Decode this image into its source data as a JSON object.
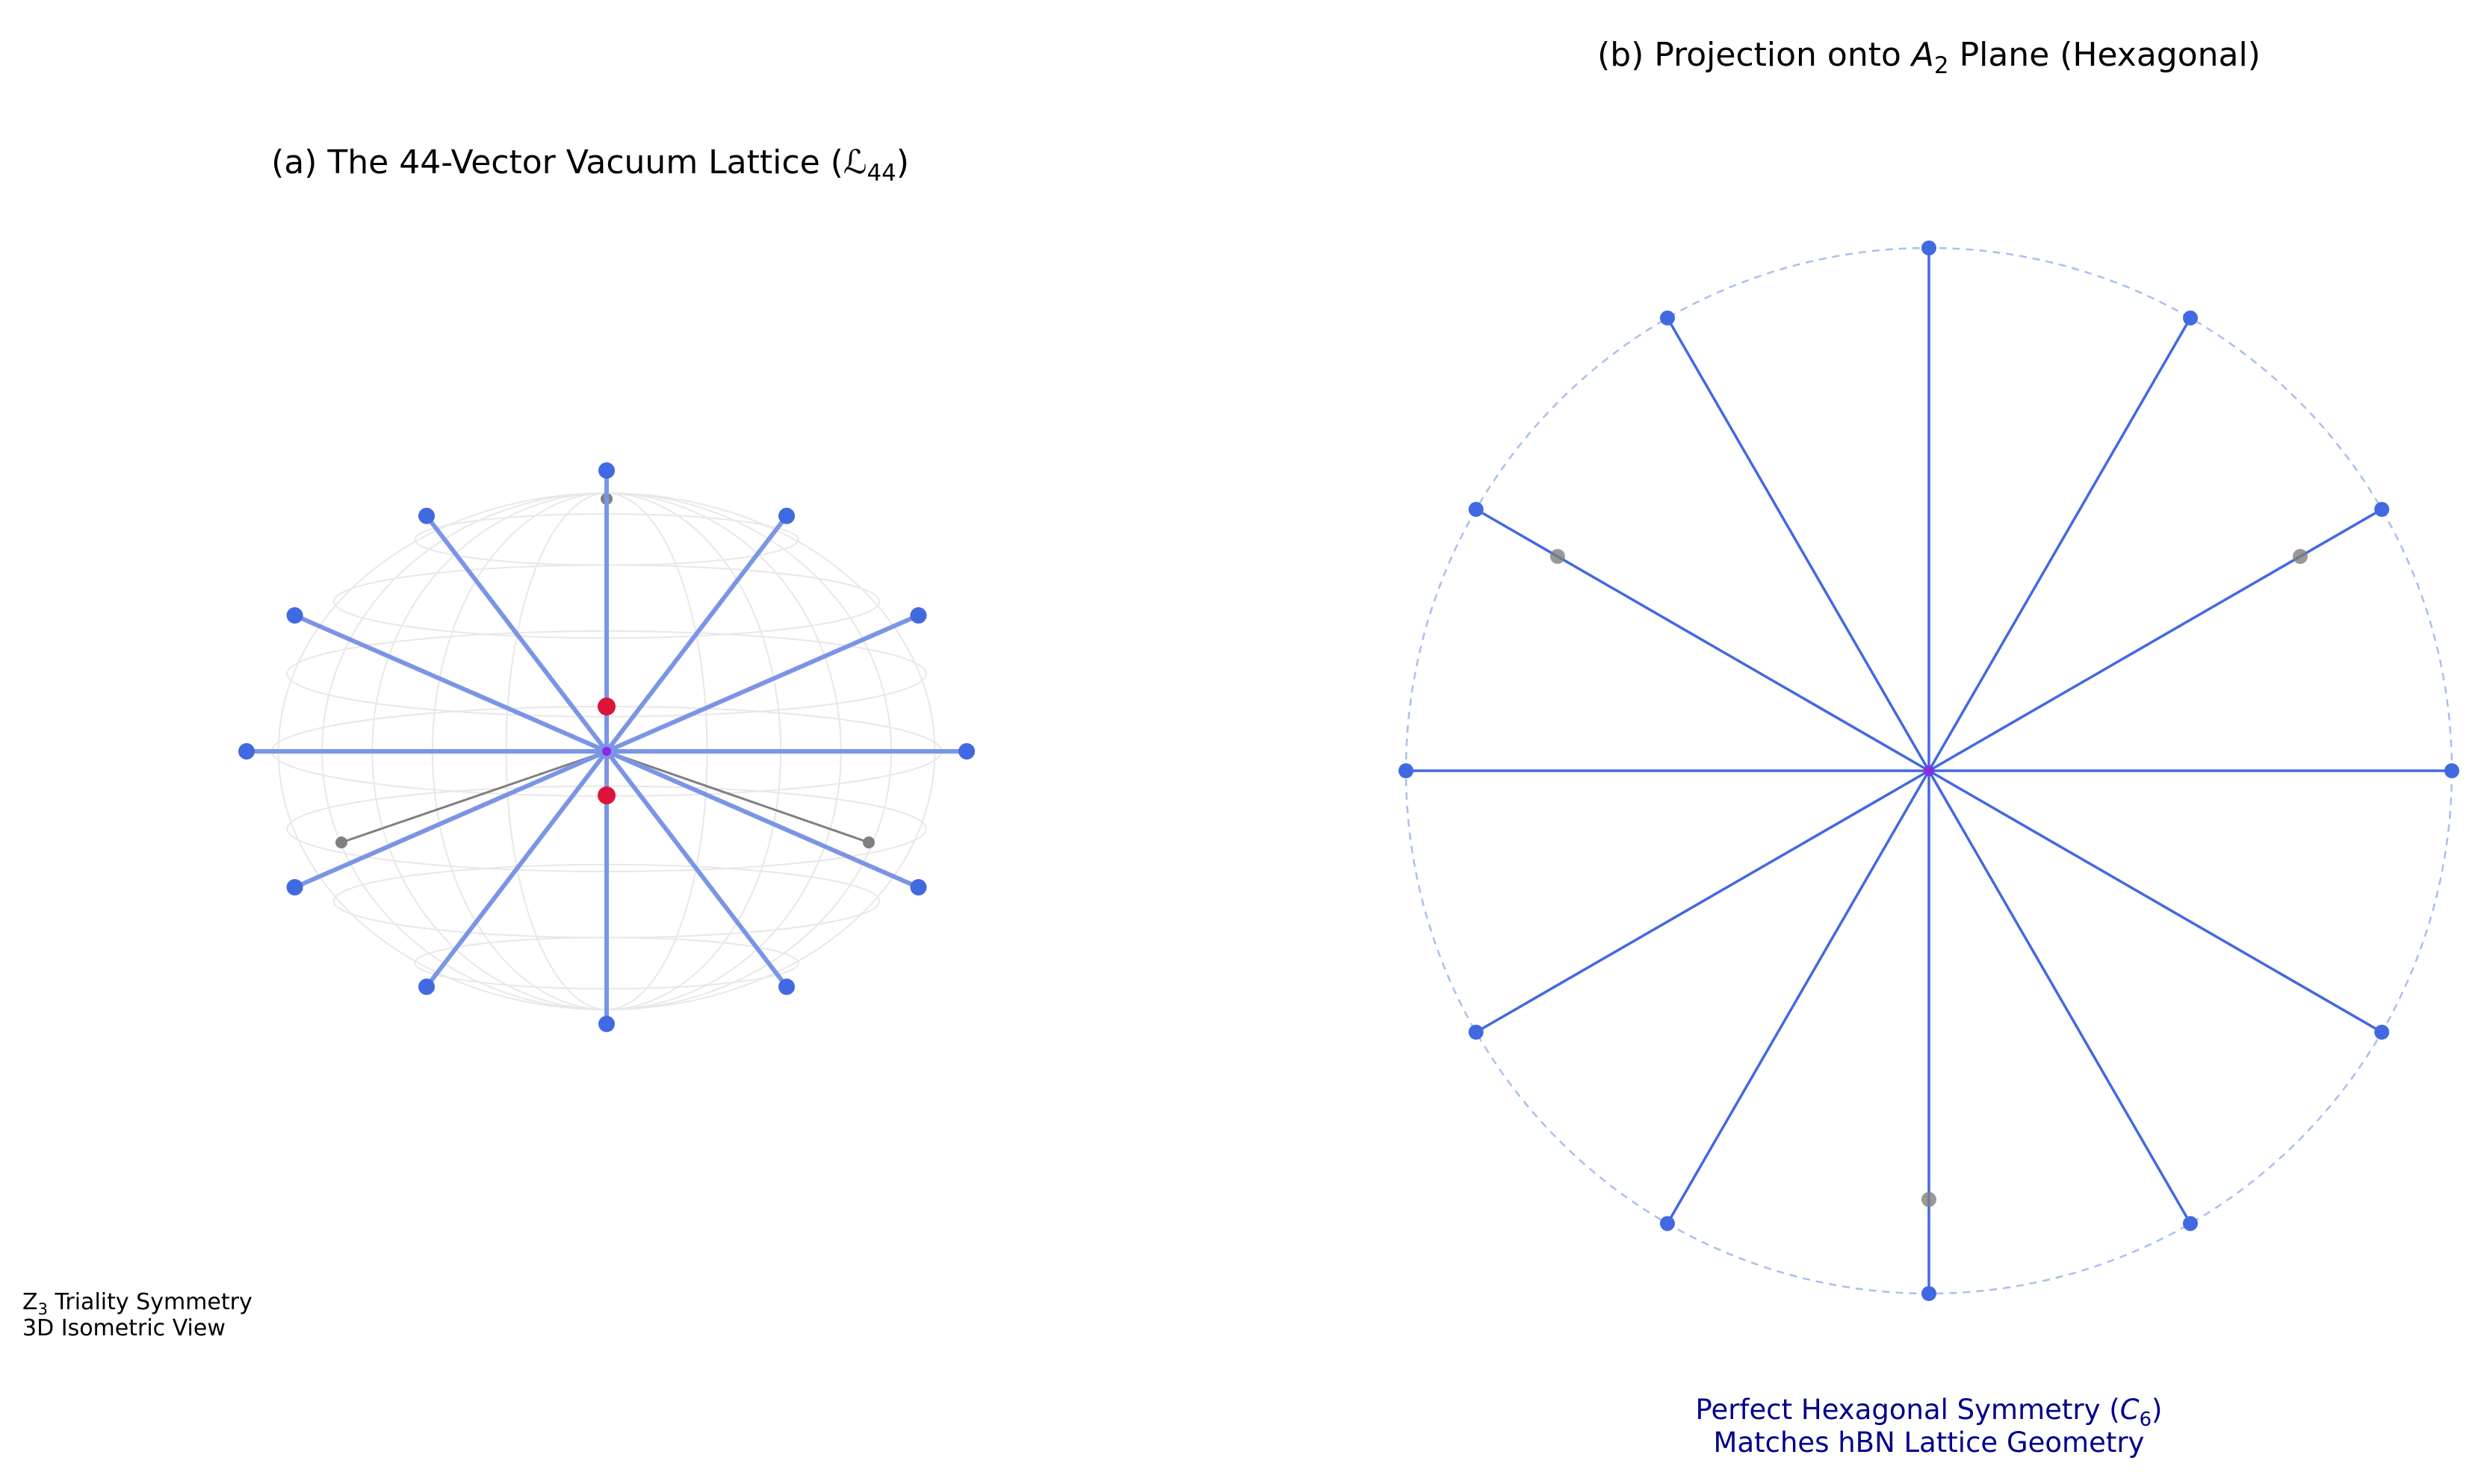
{
  "panel_a": {
    "title_prefix": "(a) The 44-Vector Vacuum Lattice (",
    "title_symbol": "ℒ",
    "title_subscript": "44",
    "title_suffix": ")",
    "note_line1_prefix": "Z",
    "note_line1_subscript": "3",
    "note_line1_suffix": " Triality Symmetry",
    "note_line2": "3D Isometric View"
  },
  "panel_b": {
    "title_prefix": "(b) Projection onto ",
    "title_italic": "A",
    "title_subscript": "2",
    "title_suffix": " Plane (Hexagonal)",
    "caption_line1_prefix": "Perfect Hexagonal Symmetry (",
    "caption_line1_italic": "C",
    "caption_line1_subscript": "6",
    "caption_line1_suffix": ")",
    "caption_line2": "Matches hBN Lattice Geometry"
  },
  "colors": {
    "vector": "#4169e1",
    "vector_3d": "#7b95e6",
    "sphere_wire": "#e8e8e8",
    "circle_dashed": "#aabff0",
    "gray_point": "#808080",
    "red_point": "#dc143c",
    "center": "#8a2be2",
    "caption": "#00008b"
  },
  "chart_data": [
    {
      "type": "scatter",
      "name": "panel_a_3d_isometric",
      "axes_visible": false,
      "blue_vector_angles_deg": [
        0,
        30,
        60,
        90,
        120,
        150,
        180,
        210,
        240,
        270,
        300,
        330
      ],
      "gray_vectors": 3,
      "red_points": 2
    },
    {
      "type": "scatter",
      "name": "panel_b_A2_projection",
      "axes_visible": false,
      "blue_vector_angles_deg": [
        0,
        30,
        60,
        90,
        120,
        150,
        180,
        210,
        240,
        270,
        300,
        330
      ],
      "blue_vector_radius": 1.0,
      "gray_points": [
        {
          "angle_deg": 30,
          "radius": 0.82
        },
        {
          "angle_deg": 150,
          "radius": 0.82
        },
        {
          "angle_deg": 270,
          "radius": 0.82
        }
      ],
      "reference_circle_radius": 1.0
    }
  ]
}
